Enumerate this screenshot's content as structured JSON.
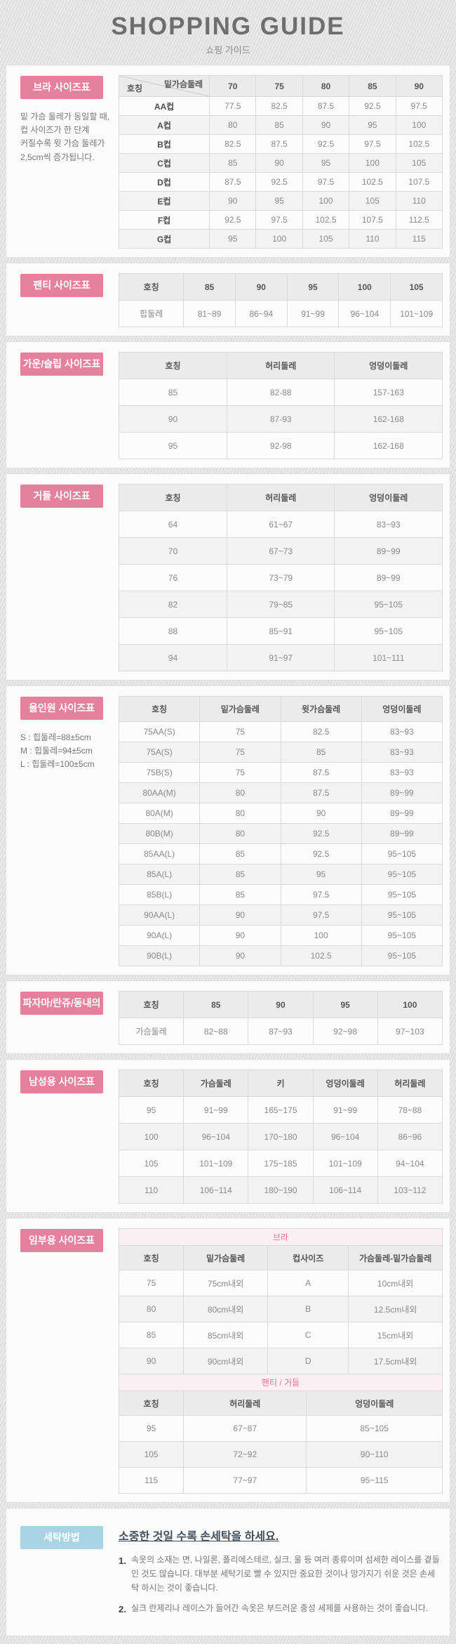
{
  "header": {
    "title": "SHOPPING GUIDE",
    "subtitle": "쇼핑 가이드"
  },
  "colors": {
    "accent_pink": "#e5809d",
    "accent_blue": "#a9d4e5",
    "band_pink_bg": "#fcf0f4",
    "band_pink_text": "#e2738f",
    "table_header_bg": "#ebebeb"
  },
  "sections": {
    "bra": {
      "label": "브라 사이즈표",
      "note": "밑 가슴 둘레가 동일할 때,\n컵 사이즈가 한 단계\n커질수록 윗 가슴 둘레가\n2,5cm씩 증가됩니다."
    },
    "panty": {
      "label": "팬티 사이즈표"
    },
    "gown": {
      "label": "가운/슬립 사이즈표"
    },
    "girdle": {
      "label": "거들 사이즈표"
    },
    "allinone": {
      "label": "올인원 사이즈표",
      "note": "S : 힙둘레=88±5cm\nM : 힙둘레=94±5cm\nL : 힙둘레=100±5cm"
    },
    "pajama": {
      "label": "파자마/란쥬/동내의"
    },
    "mens": {
      "label": "남성용 사이즈표"
    },
    "maternity": {
      "label": "임부용 사이즈표"
    },
    "washing": {
      "label": "세탁방법",
      "title": "소중한 것일 수록 손세탁을 하세요.",
      "items": [
        {
          "num": "1.",
          "text": "속옷의 소재는 면, 나일론, 폴리에스테르, 실크, 울 등 여러 종류이며 섬세한 레이스를 곁들인 것도 많습니다. 대부분 세탁기로 빨 수 있지만 중요한 것이나 망가지기 쉬운 것은 손세탁 하시는 것이 좋습니다."
        },
        {
          "num": "2.",
          "text": "실크 란제리나 레이스가 들어간 속옷은 부드러운 중성 세제를 사용하는 것이 좋습니다."
        }
      ]
    }
  },
  "tables": {
    "bra": {
      "widths": [
        "28%",
        "14.4%",
        "14.4%",
        "14.4%",
        "14.4%",
        "14.4%"
      ],
      "rows": [
        {
          "kind": "head",
          "diag": {
            "top": "밑가슴둘레",
            "bottom": "호칭"
          },
          "cells": [
            "70",
            "75",
            "80",
            "85",
            "90"
          ]
        },
        {
          "kind": "data",
          "cells": [
            "AA컵",
            "77.5",
            "82.5",
            "87.5",
            "92.5",
            "97.5"
          ]
        },
        {
          "kind": "data",
          "cells": [
            "A컵",
            "80",
            "85",
            "90",
            "95",
            "100"
          ]
        },
        {
          "kind": "data",
          "cells": [
            "B컵",
            "82.5",
            "87.5",
            "92.5",
            "97.5",
            "102.5"
          ]
        },
        {
          "kind": "data",
          "cells": [
            "C컵",
            "85",
            "90",
            "95",
            "100",
            "105"
          ]
        },
        {
          "kind": "data",
          "cells": [
            "D컵",
            "87.5",
            "92.5",
            "97.5",
            "102.5",
            "107.5"
          ]
        },
        {
          "kind": "data",
          "cells": [
            "E컵",
            "90",
            "95",
            "100",
            "105",
            "110"
          ]
        },
        {
          "kind": "data",
          "cells": [
            "F컵",
            "92.5",
            "97.5",
            "102.5",
            "107.5",
            "112.5"
          ]
        },
        {
          "kind": "data",
          "cells": [
            "G컵",
            "95",
            "100",
            "105",
            "110",
            "115"
          ]
        }
      ]
    },
    "panty": {
      "widths": [
        "20%",
        "16%",
        "16%",
        "16%",
        "16%",
        "16%"
      ],
      "rows": [
        {
          "kind": "head",
          "cells": [
            "호칭",
            "85",
            "90",
            "95",
            "100",
            "105"
          ]
        },
        {
          "kind": "data",
          "cells": [
            "힙둘레",
            "81~89",
            "86~94",
            "91~99",
            "96~104",
            "101~109"
          ]
        }
      ]
    },
    "gown": {
      "widths": [
        "33.4%",
        "33.3%",
        "33.3%"
      ],
      "rows": [
        {
          "kind": "head",
          "cells": [
            "호칭",
            "허리둘레",
            "엉덩이둘레"
          ]
        },
        {
          "kind": "data",
          "cells": [
            "85",
            "82-88",
            "157-163"
          ]
        },
        {
          "kind": "data",
          "cells": [
            "90",
            "87-93",
            "162-168"
          ]
        },
        {
          "kind": "data",
          "cells": [
            "95",
            "92-98",
            "162-168"
          ]
        }
      ]
    },
    "girdle": {
      "widths": [
        "33.4%",
        "33.3%",
        "33.3%"
      ],
      "rows": [
        {
          "kind": "head",
          "cells": [
            "호칭",
            "허리둘레",
            "엉덩이둘레"
          ]
        },
        {
          "kind": "data",
          "cells": [
            "64",
            "61~67",
            "83~93"
          ]
        },
        {
          "kind": "data",
          "cells": [
            "70",
            "67~73",
            "89~99"
          ]
        },
        {
          "kind": "data",
          "cells": [
            "76",
            "73~79",
            "89~99"
          ]
        },
        {
          "kind": "data",
          "cells": [
            "82",
            "79~85",
            "95~105"
          ]
        },
        {
          "kind": "data",
          "cells": [
            "88",
            "85~91",
            "95~105"
          ]
        },
        {
          "kind": "data",
          "cells": [
            "94",
            "91~97",
            "101~111"
          ]
        }
      ]
    },
    "allinone": {
      "widths": [
        "25%",
        "25%",
        "25%",
        "25%"
      ],
      "rows": [
        {
          "kind": "head",
          "cells": [
            "호칭",
            "밑가슴둘레",
            "윗가슴둘레",
            "엉덩이둘레"
          ]
        },
        {
          "kind": "data",
          "cells": [
            "75AA(S)",
            "75",
            "82.5",
            "83~93"
          ]
        },
        {
          "kind": "data",
          "cells": [
            "75A(S)",
            "75",
            "85",
            "83~93"
          ]
        },
        {
          "kind": "data",
          "cells": [
            "75B(S)",
            "75",
            "87.5",
            "83~93"
          ]
        },
        {
          "kind": "data",
          "cells": [
            "80AA(M)",
            "80",
            "87.5",
            "89~99"
          ]
        },
        {
          "kind": "data",
          "cells": [
            "80A(M)",
            "80",
            "90",
            "89~99"
          ]
        },
        {
          "kind": "data",
          "cells": [
            "80B(M)",
            "80",
            "92.5",
            "89~99"
          ]
        },
        {
          "kind": "data",
          "cells": [
            "85AA(L)",
            "85",
            "92.5",
            "95~105"
          ]
        },
        {
          "kind": "data",
          "cells": [
            "85A(L)",
            "85",
            "95",
            "95~105"
          ]
        },
        {
          "kind": "data",
          "cells": [
            "85B(L)",
            "85",
            "97.5",
            "95~105"
          ]
        },
        {
          "kind": "data",
          "cells": [
            "90AA(L)",
            "90",
            "97.5",
            "95~105"
          ]
        },
        {
          "kind": "data",
          "cells": [
            "90A(L)",
            "90",
            "100",
            "95~105"
          ]
        },
        {
          "kind": "data",
          "cells": [
            "90B(L)",
            "90",
            "102.5",
            "95~105"
          ]
        }
      ]
    },
    "pajama": {
      "widths": [
        "20%",
        "20%",
        "20%",
        "20%",
        "20%"
      ],
      "rows": [
        {
          "kind": "head",
          "cells": [
            "호칭",
            "85",
            "90",
            "95",
            "100"
          ]
        },
        {
          "kind": "data",
          "cells": [
            "가슴둘레",
            "82~88",
            "87~93",
            "92~98",
            "97~103"
          ]
        }
      ]
    },
    "mens": {
      "widths": [
        "20%",
        "20%",
        "20%",
        "20%",
        "20%"
      ],
      "rows": [
        {
          "kind": "head",
          "cells": [
            "호칭",
            "가슴둘레",
            "키",
            "엉덩이둘레",
            "허리둘레"
          ]
        },
        {
          "kind": "data",
          "cells": [
            "95",
            "91~99",
            "165~175",
            "91~99",
            "78~88"
          ]
        },
        {
          "kind": "data",
          "cells": [
            "100",
            "96~104",
            "170~180",
            "96~104",
            "86~96"
          ]
        },
        {
          "kind": "data",
          "cells": [
            "105",
            "101~109",
            "175~185",
            "101~109",
            "94~104"
          ]
        },
        {
          "kind": "data",
          "cells": [
            "110",
            "106~114",
            "180~190",
            "106~114",
            "103~112"
          ]
        }
      ]
    },
    "mat_bra": {
      "widths": [
        "20%",
        "26%",
        "25%",
        "29%"
      ],
      "rows": [
        {
          "kind": "band",
          "text": "브라"
        },
        {
          "kind": "head",
          "cells": [
            "호칭",
            "밑가슴둘레",
            "컵사이즈",
            "가슴둘레-밑가슴둘레"
          ]
        },
        {
          "kind": "data",
          "cells": [
            "75",
            "75cm내외",
            "A",
            "10cm내외"
          ]
        },
        {
          "kind": "data",
          "cells": [
            "80",
            "80cm내외",
            "B",
            "12.5cm내외"
          ]
        },
        {
          "kind": "data",
          "cells": [
            "85",
            "85cm내외",
            "C",
            "15cm내외"
          ]
        },
        {
          "kind": "data",
          "cells": [
            "90",
            "90cm내외",
            "D",
            "17.5cm내외"
          ]
        }
      ]
    },
    "mat_panty": {
      "widths": [
        "20%",
        "38%",
        "42%"
      ],
      "rows": [
        {
          "kind": "band",
          "text": "팬티 / 거들"
        },
        {
          "kind": "head",
          "cells": [
            "호칭",
            "허리둘레",
            "엉덩이둘레"
          ]
        },
        {
          "kind": "data",
          "cells": [
            "95",
            "67~87",
            "85~105"
          ]
        },
        {
          "kind": "data",
          "cells": [
            "105",
            "72~92",
            "90~110"
          ]
        },
        {
          "kind": "data",
          "cells": [
            "115",
            "77~97",
            "95~115"
          ]
        }
      ]
    }
  }
}
